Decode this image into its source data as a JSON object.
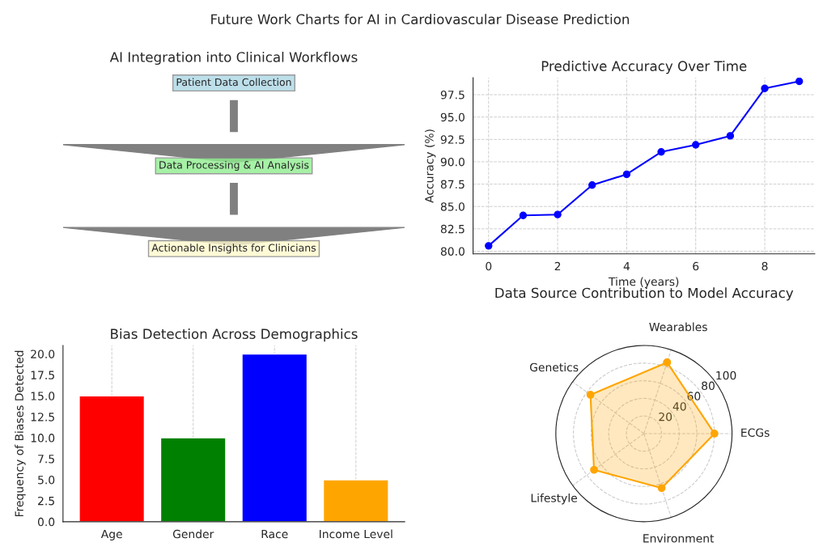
{
  "chart_data": [
    {
      "type": "other",
      "title": "Future Work Charts for AI in Cardiovascular Disease Prediction"
    },
    {
      "type": "other",
      "title": "AI Integration into Clinical Workflows",
      "annotations": [
        "Patient Data Collection",
        "Data Processing & AI Analysis",
        "Actionable Insights for Clinicians"
      ]
    },
    {
      "type": "line",
      "title": "Predictive Accuracy Over Time",
      "xlabel": "Time (years)",
      "ylabel": "Accuracy (%)",
      "x": [
        0,
        1,
        2,
        3,
        4,
        5,
        6,
        7,
        8,
        9
      ],
      "series": [
        {
          "color": "#0000ff",
          "values": [
            80.6,
            84.0,
            84.1,
            87.4,
            88.6,
            91.1,
            91.9,
            92.9,
            98.2,
            99.0
          ]
        }
      ],
      "xlim": [
        -0.45,
        9.45
      ],
      "xticks": [
        0,
        2,
        4,
        6,
        8
      ],
      "ylim": [
        79.7,
        99.4
      ],
      "yticks": [
        {
          "value": 80,
          "label": "80.0"
        },
        {
          "value": 82.5,
          "label": "82.5"
        },
        {
          "value": 85,
          "label": "85.0"
        },
        {
          "value": 87.5,
          "label": "87.5"
        },
        {
          "value": 90,
          "label": "90.0"
        },
        {
          "value": 92.5,
          "label": "92.5"
        },
        {
          "value": 95,
          "label": "95.0"
        },
        {
          "value": 97.5,
          "label": "97.5"
        }
      ],
      "grid": true,
      "marker": "circle",
      "line_style": "solid"
    },
    {
      "type": "bar",
      "title": "Bias Detection Across Demographics",
      "ylabel": "Frequency of Biases Detected",
      "categories": [
        "Age",
        "Gender",
        "Race",
        "Income Level"
      ],
      "values": [
        15,
        10,
        20,
        5
      ],
      "colors": [
        "#ff0000",
        "#008000",
        "#0000ff",
        "#ffa500"
      ],
      "ylim": [
        0,
        21
      ],
      "yticks": [
        {
          "value": 0,
          "label": "0.0"
        },
        {
          "value": 2.5,
          "label": "2.5"
        },
        {
          "value": 5,
          "label": "5.0"
        },
        {
          "value": 7.5,
          "label": "7.5"
        },
        {
          "value": 10,
          "label": "10.0"
        },
        {
          "value": 12.5,
          "label": "12.5"
        },
        {
          "value": 15,
          "label": "15.0"
        },
        {
          "value": 17.5,
          "label": "17.5"
        },
        {
          "value": 20,
          "label": "20.0"
        }
      ],
      "grid": "x"
    },
    {
      "type": "radar",
      "title": "Data Source Contribution to Model Accuracy",
      "categories": [
        "Wearables",
        "ECGs",
        "Environment",
        "Lifestyle",
        "Genetics"
      ],
      "series": [
        {
          "color": "#ffa500",
          "values": [
            85,
            80,
            65,
            70,
            75
          ]
        }
      ],
      "ylim": [
        0,
        100
      ],
      "yticks": [
        20,
        40,
        60,
        80,
        100
      ],
      "grid": true,
      "marker": "circle"
    }
  ]
}
